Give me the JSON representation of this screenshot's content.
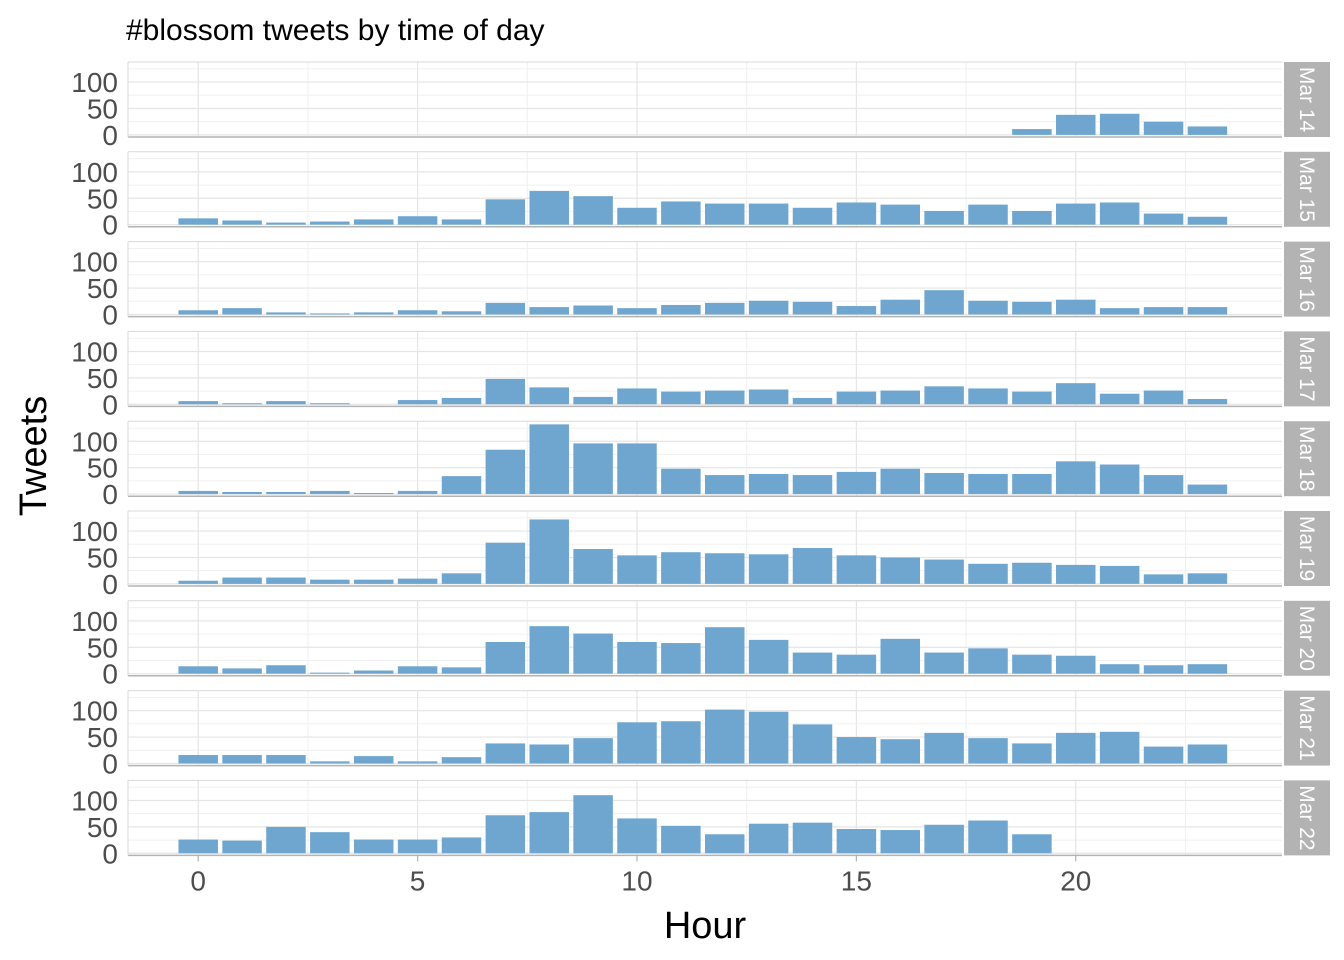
{
  "chart_data": {
    "type": "bar",
    "title": "#blossom tweets by time of day",
    "xlabel": "Hour",
    "ylabel": "Tweets",
    "x_ticks": [
      0,
      5,
      10,
      15,
      20
    ],
    "y_ticks": [
      0,
      50,
      100
    ],
    "xlim": [
      -1.6,
      24.7
    ],
    "ylim": [
      -4,
      138
    ],
    "grid": true,
    "bar_color": "#6ea6cf",
    "strip_color": "#b3b3b3",
    "facets": [
      {
        "label": "Mar 14",
        "values": [
          null,
          null,
          null,
          null,
          null,
          null,
          null,
          null,
          null,
          null,
          null,
          null,
          null,
          null,
          null,
          null,
          null,
          null,
          null,
          11,
          38,
          40,
          25,
          16
        ]
      },
      {
        "label": "Mar 15",
        "values": [
          12,
          8,
          4,
          6,
          10,
          16,
          10,
          48,
          64,
          54,
          32,
          44,
          40,
          40,
          32,
          42,
          38,
          26,
          38,
          26,
          40,
          42,
          21,
          15
        ]
      },
      {
        "label": "Mar 16",
        "values": [
          8,
          12,
          4,
          2,
          4,
          8,
          6,
          22,
          14,
          17,
          12,
          18,
          22,
          26,
          24,
          16,
          28,
          46,
          26,
          24,
          28,
          12,
          14,
          14
        ]
      },
      {
        "label": "Mar 17",
        "values": [
          6,
          2,
          6,
          2,
          null,
          8,
          12,
          48,
          32,
          14,
          30,
          24,
          26,
          28,
          12,
          24,
          26,
          34,
          30,
          24,
          40,
          20,
          26,
          10
        ]
      },
      {
        "label": "Mar 18",
        "values": [
          6,
          4,
          4,
          6,
          2,
          6,
          34,
          84,
          132,
          96,
          96,
          48,
          36,
          38,
          36,
          42,
          48,
          40,
          38,
          38,
          62,
          56,
          36,
          18
        ]
      },
      {
        "label": "Mar 19",
        "values": [
          6,
          12,
          12,
          8,
          8,
          10,
          20,
          78,
          122,
          66,
          54,
          60,
          58,
          56,
          68,
          54,
          50,
          46,
          38,
          40,
          36,
          34,
          18,
          20
        ]
      },
      {
        "label": "Mar 20",
        "values": [
          14,
          10,
          16,
          2,
          6,
          14,
          12,
          60,
          90,
          76,
          60,
          58,
          88,
          64,
          40,
          36,
          66,
          40,
          48,
          36,
          34,
          18,
          16,
          18
        ]
      },
      {
        "label": "Mar 21",
        "values": [
          16,
          16,
          16,
          4,
          14,
          4,
          12,
          38,
          36,
          48,
          78,
          80,
          102,
          98,
          74,
          50,
          46,
          58,
          48,
          38,
          58,
          60,
          32,
          36
        ]
      },
      {
        "label": "Mar 22",
        "values": [
          26,
          24,
          50,
          40,
          26,
          26,
          30,
          72,
          78,
          110,
          66,
          52,
          36,
          56,
          58,
          46,
          44,
          54,
          62,
          36,
          null,
          null,
          null,
          null
        ]
      }
    ]
  }
}
